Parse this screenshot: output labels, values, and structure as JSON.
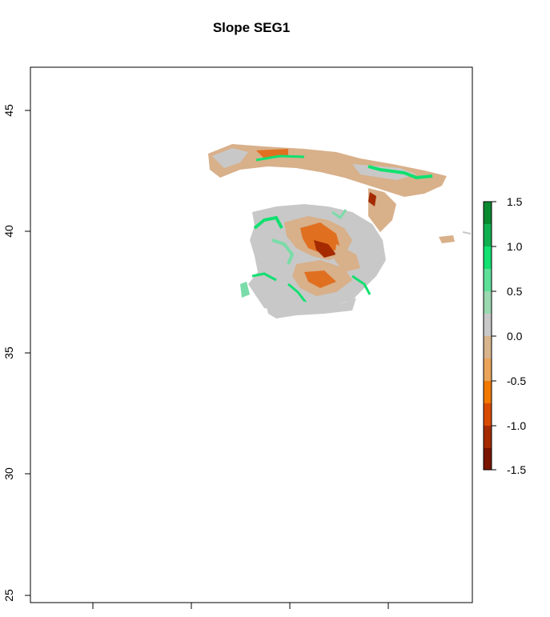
{
  "title": "Slope SEG1",
  "map": {
    "y_axis_ticks": [
      "25",
      "30",
      "35",
      "40",
      "45"
    ],
    "y_range": [
      24.8,
      46.7
    ],
    "x_ticks_count": 4
  },
  "legend": {
    "ticks": [
      "1.5",
      "1.0",
      "0.5",
      "0.0",
      "-0.5",
      "-1.0",
      "-1.5"
    ],
    "range": [
      -1.5,
      1.5
    ],
    "colors": [
      "#7a1500",
      "#a52a00",
      "#d84a00",
      "#f07800",
      "#e9a45a",
      "#d8b48c",
      "#c8c8c8",
      "#9ad8b0",
      "#5ee09a",
      "#12e070",
      "#10b050",
      "#0a8a30"
    ]
  },
  "colors": {
    "neg_strong": "#a52a00",
    "neg_mid": "#e07020",
    "neg_weak": "#d8b08a",
    "zero": "#c8c8c8",
    "pos_weak": "#7adca8",
    "pos_strong": "#12e070"
  }
}
